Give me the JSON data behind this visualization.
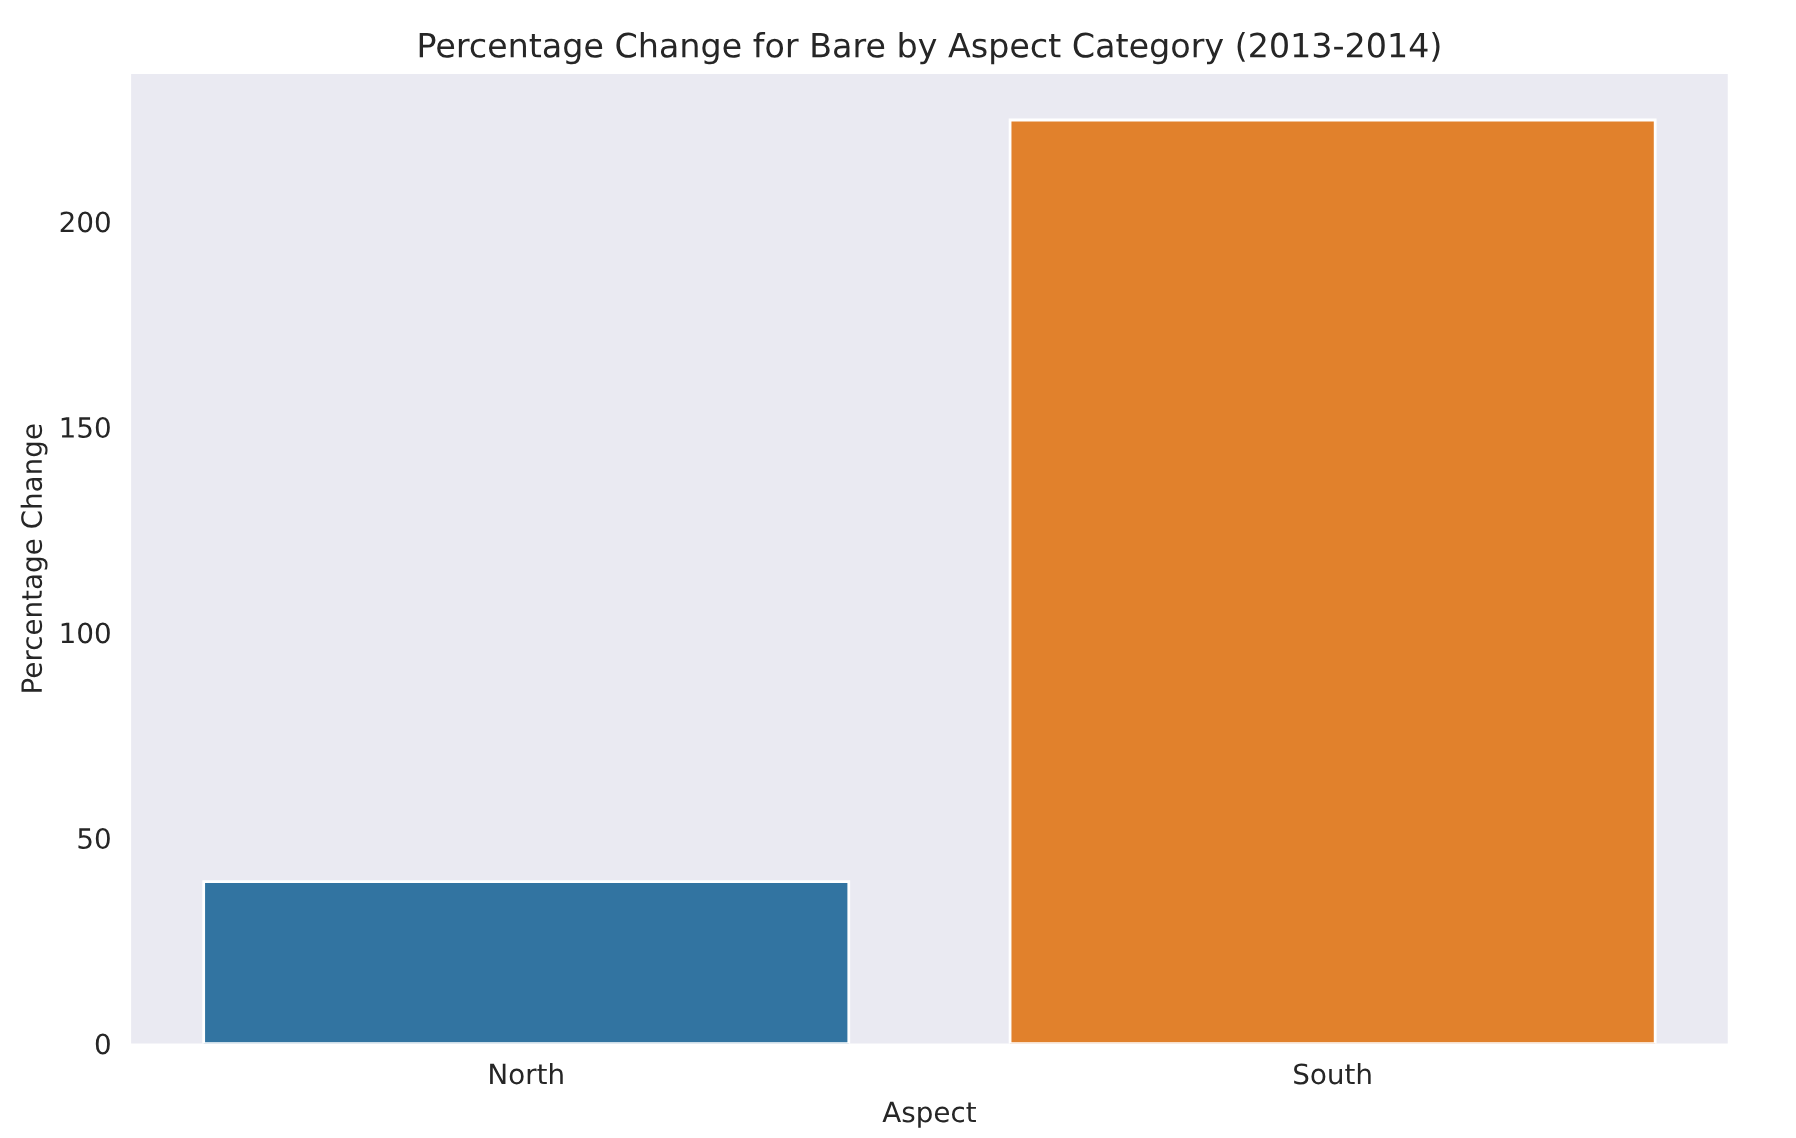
{
  "chart_data": {
    "type": "bar",
    "title": "Percentage Change for Bare by Aspect Category (2013-2014)",
    "xlabel": "Aspect",
    "ylabel": "Percentage Change",
    "categories": [
      "North",
      "South"
    ],
    "values": [
      39.4,
      224.7
    ],
    "colors": [
      "#3274a1",
      "#e1812c"
    ],
    "ylim": [
      0,
      235.9
    ],
    "yticks": [
      0,
      50,
      100,
      150,
      200
    ],
    "grid": false
  }
}
